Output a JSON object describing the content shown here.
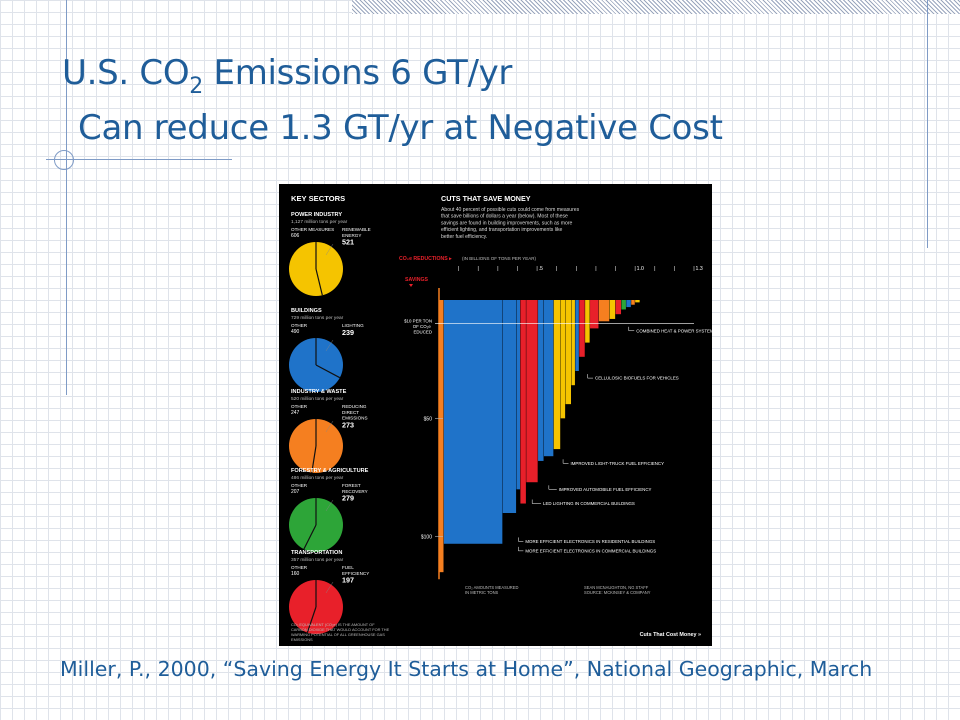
{
  "slide": {
    "title_pre": "U.S. CO",
    "title_sub": "2",
    "title_post": " Emissions 6 GT/yr",
    "title_line2": "Can reduce 1.3 GT/yr at Negative Cost",
    "citation": "Miller, P., 2000, “Saving Energy It Starts at Home”, National Geographic, March"
  },
  "chart_data": [
    {
      "type": "pie",
      "title": "KEY SECTORS",
      "sectors": [
        {
          "name": "POWER INDUSTRY",
          "total_label": "1,127 million tons per year",
          "other_label": "OTHER MEASURES",
          "other": 606,
          "focus_label": "RENEWABLE ENERGY",
          "focus": 521,
          "color": "#f5c400"
        },
        {
          "name": "BUILDINGS",
          "total_label": "729 million tons per year",
          "other_label": "OTHER",
          "other": 490,
          "focus_label": "LIGHTING",
          "focus": 239,
          "color": "#1f73c9"
        },
        {
          "name": "INDUSTRY & WASTE",
          "total_label": "520 million tons per year",
          "other_label": "OTHER",
          "other": 247,
          "focus_label": "REDUCING DIRECT EMISSIONS",
          "focus": 273,
          "color": "#f57f20"
        },
        {
          "name": "FORESTRY & AGRICULTURE",
          "total_label": "486 million tons per year",
          "other_label": "OTHER",
          "other": 207,
          "focus_label": "FOREST RECOVERY",
          "focus": 279,
          "color": "#2da538"
        },
        {
          "name": "TRANSPORTATION",
          "total_label": "357 million tons per year",
          "other_label": "OTHER",
          "other": 160,
          "focus_label": "FUEL EFFICIENCY",
          "focus": 197,
          "color": "#e8202a"
        }
      ],
      "footnote": "CO₂ EQUIVALENT (CO₂e) IS THE AMOUNT OF CARBON DIOXIDE THAT WOULD ACCOUNT FOR THE WARMING POTENTIAL OF ALL GREENHOUSE GAS EMISSIONS"
    },
    {
      "type": "bar",
      "title": "CUTS THAT SAVE MONEY",
      "description": "About 40 percent of possible cuts could come from measures that save billions of dollars a year (below). Most of these savings are found in building improvements, such as more efficient lighting, and transportation improvements like better fuel efficiency.",
      "xlabel": "CO₂e REDUCTIONS ▸",
      "xlabel_units": "(IN BILLIONS OF TONS PER YEAR)",
      "xlim": [
        0,
        1.3
      ],
      "x_ticks": [
        {
          "value": 0.5,
          "label": ".5"
        },
        {
          "value": 1.0,
          "label": "1.0"
        },
        {
          "value": 1.3,
          "label": "1.3"
        }
      ],
      "ylabel": "SAVINGS",
      "ylim": [
        0,
        120
      ],
      "y_ticks": [
        {
          "value": 10,
          "label": "$10 PER TON OF CO₂e REDUCED"
        },
        {
          "value": 50,
          "label": "$50"
        },
        {
          "value": 100,
          "label": "$100"
        }
      ],
      "bars": [
        {
          "width": 0.025,
          "value": 115,
          "color": "#f57f20"
        },
        {
          "width": 0.3,
          "value": 103,
          "color": "#1f73c9"
        },
        {
          "width": 0.07,
          "value": 90,
          "color": "#1f73c9"
        },
        {
          "width": 0.02,
          "value": 80,
          "color": "#1f73c9"
        },
        {
          "width": 0.03,
          "value": 86,
          "color": "#e8202a"
        },
        {
          "width": 0.06,
          "value": 77,
          "color": "#e8202a"
        },
        {
          "width": 0.03,
          "value": 68,
          "color": "#1f73c9"
        },
        {
          "width": 0.05,
          "value": 66,
          "color": "#1f73c9"
        },
        {
          "width": 0.035,
          "value": 63,
          "color": "#f5c400"
        },
        {
          "width": 0.025,
          "value": 50,
          "color": "#f5c400"
        },
        {
          "width": 0.03,
          "value": 44,
          "color": "#f5c400"
        },
        {
          "width": 0.02,
          "value": 36,
          "color": "#f5c400"
        },
        {
          "width": 0.02,
          "value": 30,
          "color": "#1f73c9"
        },
        {
          "width": 0.03,
          "value": 24,
          "color": "#e8202a"
        },
        {
          "width": 0.025,
          "value": 18,
          "color": "#f5c400"
        },
        {
          "width": 0.045,
          "value": 12,
          "color": "#e8202a"
        },
        {
          "width": 0.055,
          "value": 9,
          "color": "#f57f20"
        },
        {
          "width": 0.03,
          "value": 8,
          "color": "#f5c400"
        },
        {
          "width": 0.03,
          "value": 6,
          "color": "#e8202a"
        },
        {
          "width": 0.025,
          "value": 4,
          "color": "#2da538"
        },
        {
          "width": 0.025,
          "value": 3,
          "color": "#1f73c9"
        },
        {
          "width": 0.02,
          "value": 2,
          "color": "#f57f20"
        },
        {
          "width": 0.025,
          "value": 1,
          "color": "#f5c400"
        }
      ],
      "annotations": [
        {
          "label": "COMBINED HEAT & POWER SYSTEMS",
          "bar": 20,
          "value": 13
        },
        {
          "label": "CELLULOSIC BIOFUELS FOR VEHICLES",
          "bar": 14,
          "value": 33
        },
        {
          "label": "IMPROVED LIGHT-TRUCK FUEL EFFICIENCY",
          "bar": 9,
          "value": 69
        },
        {
          "label": "IMPROVED AUTOMOBILE FUEL EFFICIENCY",
          "bar": 7,
          "value": 80
        },
        {
          "label": "LED LIGHTING IN COMMERCIAL BUILDINGS",
          "bar": 5,
          "value": 86
        },
        {
          "label": "MORE EFFICIENT ELECTRONICS IN RESIDENTIAL BUILDINGS",
          "bar": 3,
          "value": 102
        },
        {
          "label": "MORE EFFICIENT ELECTRONICS IN COMMERCIAL BUILDINGS",
          "bar": 3,
          "value": 106
        }
      ],
      "notes": {
        "units": "CO₂ AMOUNTS MEASURED IN METRIC TONS",
        "credit": "SEAN MCNAUGHTON, NG STAFF SOURCE: MCKINSEY & COMPANY",
        "footer": "Cuts That Cost Money »"
      }
    }
  ]
}
